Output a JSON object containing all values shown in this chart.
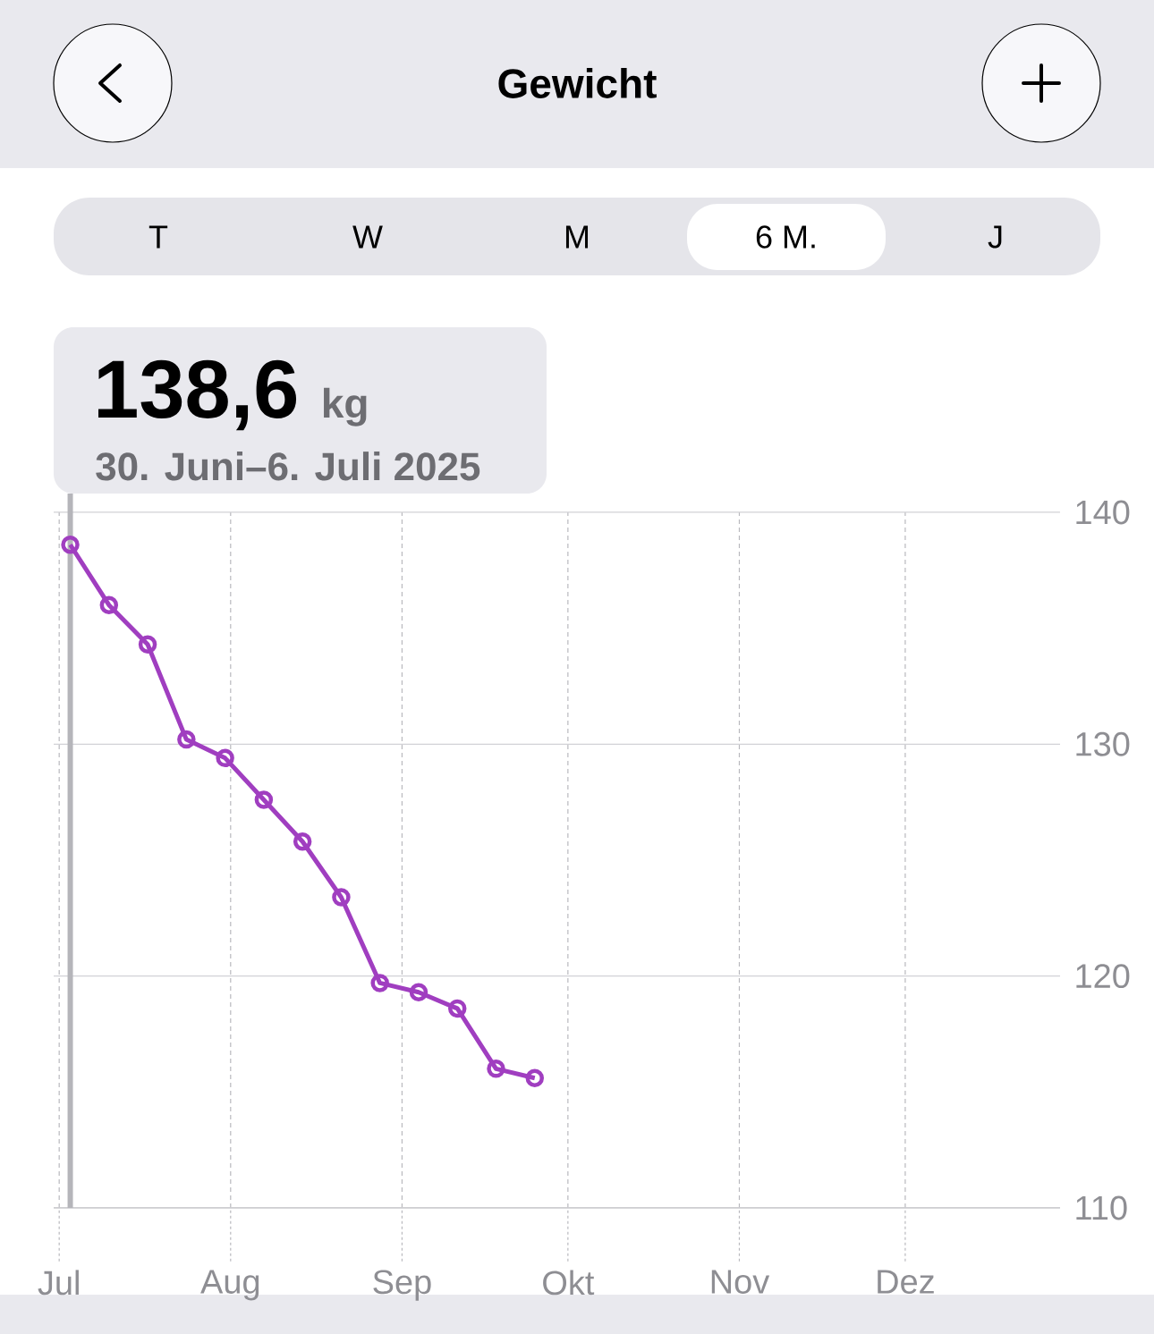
{
  "chart_data": {
    "type": "line",
    "title": "Gewicht",
    "annotations": [
      "T",
      "W",
      "M",
      "6 M.",
      "J",
      "138,6",
      "kg",
      "30. Juni–6. Juli 2025"
    ],
    "x": [
      "2025-07-03",
      "2025-07-10",
      "2025-07-17",
      "2025-07-24",
      "2025-07-31",
      "2025-08-07",
      "2025-08-14",
      "2025-08-21",
      "2025-08-28",
      "2025-09-04",
      "2025-09-11",
      "2025-09-18",
      "2025-09-25"
    ],
    "values": [
      138.6,
      136.0,
      134.3,
      130.2,
      129.4,
      127.6,
      125.8,
      123.4,
      119.7,
      119.3,
      118.6,
      116.0,
      115.6
    ],
    "color": "#a03ec0",
    "marker": "circle",
    "xlim": [
      "2025-06-30",
      "2025-12-29"
    ],
    "xticks": [
      {
        "value": "2025-07-01",
        "label": "Jul"
      },
      {
        "value": "2025-08-01",
        "label": "Aug"
      },
      {
        "value": "2025-09-01",
        "label": "Sep"
      },
      {
        "value": "2025-10-01",
        "label": "Okt"
      },
      {
        "value": "2025-11-01",
        "label": "Nov"
      },
      {
        "value": "2025-12-01",
        "label": "Dez"
      }
    ],
    "ylim": [
      110,
      140
    ],
    "yticks": [
      110,
      120,
      130,
      140
    ],
    "grid": true,
    "ref_lines": [
      {
        "axis": "x",
        "value": "2025-07-03",
        "color": "#b5b5ba"
      }
    ]
  }
}
